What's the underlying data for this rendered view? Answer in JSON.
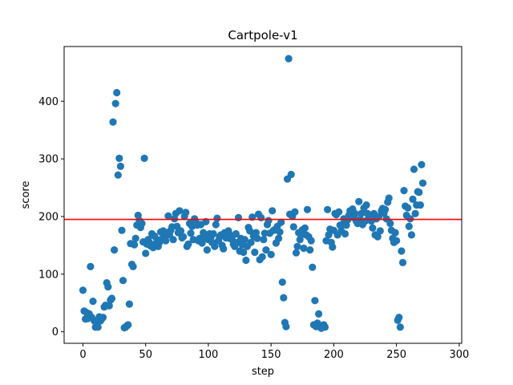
{
  "chart_data": {
    "type": "scatter",
    "title": "Cartpole-v1",
    "xlabel": "step",
    "ylabel": "score",
    "xlim": [
      -15,
      302
    ],
    "ylim": [
      -20,
      495
    ],
    "x_ticks": [
      0,
      50,
      100,
      150,
      200,
      250,
      300
    ],
    "y_ticks": [
      0,
      100,
      200,
      300,
      400
    ],
    "grid": false,
    "legend": "none",
    "point_color": "#1f77b4",
    "threshold": {
      "y": 195,
      "color": "#ff0000"
    },
    "series": [
      {
        "points": [
          [
            0,
            72
          ],
          [
            1,
            36
          ],
          [
            2,
            22
          ],
          [
            3,
            33
          ],
          [
            4,
            23
          ],
          [
            5,
            31
          ],
          [
            6,
            113
          ],
          [
            7,
            25
          ],
          [
            8,
            53
          ],
          [
            9,
            19
          ],
          [
            10,
            8
          ],
          [
            11,
            18
          ],
          [
            12,
            8
          ],
          [
            13,
            26
          ],
          [
            14,
            19
          ],
          [
            15,
            22
          ],
          [
            16,
            25
          ],
          [
            17,
            43
          ],
          [
            18,
            46
          ],
          [
            19,
            85
          ],
          [
            20,
            78
          ],
          [
            21,
            45
          ],
          [
            22,
            55
          ],
          [
            23,
            58
          ],
          [
            24,
            364
          ],
          [
            25,
            142
          ],
          [
            26,
            396
          ],
          [
            27,
            415
          ],
          [
            28,
            272
          ],
          [
            29,
            301
          ],
          [
            30,
            287
          ],
          [
            31,
            176
          ],
          [
            32,
            89
          ],
          [
            33,
            7
          ],
          [
            34,
            8
          ],
          [
            35,
            10
          ],
          [
            36,
            12
          ],
          [
            37,
            48
          ],
          [
            38,
            153
          ],
          [
            39,
            117
          ],
          [
            40,
            113
          ],
          [
            41,
            151
          ],
          [
            42,
            162
          ],
          [
            43,
            185
          ],
          [
            44,
            202
          ],
          [
            45,
            193
          ],
          [
            46,
            181
          ],
          [
            47,
            188
          ],
          [
            48,
            156
          ],
          [
            49,
            301
          ],
          [
            50,
            136
          ],
          [
            51,
            152
          ],
          [
            52,
            160
          ],
          [
            53,
            155
          ],
          [
            54,
            149
          ],
          [
            55,
            170
          ],
          [
            56,
            146
          ],
          [
            57,
            166
          ],
          [
            58,
            152
          ],
          [
            59,
            160
          ],
          [
            60,
            148
          ],
          [
            61,
            155
          ],
          [
            62,
            173
          ],
          [
            63,
            161
          ],
          [
            64,
            175
          ],
          [
            65,
            166
          ],
          [
            66,
            158
          ],
          [
            67,
            172
          ],
          [
            68,
            201
          ],
          [
            69,
            168
          ],
          [
            70,
            176
          ],
          [
            71,
            182
          ],
          [
            72,
            160
          ],
          [
            73,
            196
          ],
          [
            74,
            205
          ],
          [
            75,
            183
          ],
          [
            76,
            172
          ],
          [
            77,
            210
          ],
          [
            78,
            175
          ],
          [
            79,
            163
          ],
          [
            80,
            165
          ],
          [
            81,
            200
          ],
          [
            82,
            207
          ],
          [
            83,
            148
          ],
          [
            84,
            152
          ],
          [
            85,
            188
          ],
          [
            86,
            171
          ],
          [
            87,
            183
          ],
          [
            88,
            160
          ],
          [
            89,
            196
          ],
          [
            90,
            190
          ],
          [
            91,
            185
          ],
          [
            92,
            158
          ],
          [
            93,
            162
          ],
          [
            94,
            186
          ],
          [
            95,
            154
          ],
          [
            96,
            172
          ],
          [
            97,
            165
          ],
          [
            98,
            191
          ],
          [
            99,
            142
          ],
          [
            100,
            160
          ],
          [
            101,
            170
          ],
          [
            102,
            164
          ],
          [
            103,
            155
          ],
          [
            104,
            170
          ],
          [
            105,
            148
          ],
          [
            106,
            186
          ],
          [
            107,
            197
          ],
          [
            108,
            158
          ],
          [
            109,
            165
          ],
          [
            110,
            168
          ],
          [
            111,
            150
          ],
          [
            112,
            144
          ],
          [
            113,
            172
          ],
          [
            114,
            163
          ],
          [
            115,
            165
          ],
          [
            116,
            175
          ],
          [
            117,
            162
          ],
          [
            118,
            167
          ],
          [
            119,
            160
          ],
          [
            120,
            152
          ],
          [
            121,
            148
          ],
          [
            122,
            170
          ],
          [
            123,
            155
          ],
          [
            124,
            198
          ],
          [
            125,
            140
          ],
          [
            126,
            162
          ],
          [
            127,
            151
          ],
          [
            128,
            138
          ],
          [
            129,
            160
          ],
          [
            130,
            124
          ],
          [
            131,
            148
          ],
          [
            132,
            181
          ],
          [
            133,
            175
          ],
          [
            134,
            155
          ],
          [
            135,
            199
          ],
          [
            136,
            166
          ],
          [
            137,
            138
          ],
          [
            138,
            172
          ],
          [
            139,
            162
          ],
          [
            140,
            204
          ],
          [
            141,
            125
          ],
          [
            142,
            198
          ],
          [
            143,
            130
          ],
          [
            144,
            160
          ],
          [
            145,
            171
          ],
          [
            146,
            142
          ],
          [
            147,
            186
          ],
          [
            148,
            193
          ],
          [
            149,
            171
          ],
          [
            150,
            134
          ],
          [
            151,
            210
          ],
          [
            152,
            176
          ],
          [
            153,
            177
          ],
          [
            154,
            154
          ],
          [
            155,
            183
          ],
          [
            156,
            162
          ],
          [
            157,
            173
          ],
          [
            158,
            190
          ],
          [
            159,
            86
          ],
          [
            160,
            59
          ],
          [
            161,
            16
          ],
          [
            162,
            9
          ],
          [
            163,
            265
          ],
          [
            164,
            474
          ],
          [
            165,
            204
          ],
          [
            166,
            273
          ],
          [
            167,
            200
          ],
          [
            168,
            182
          ],
          [
            169,
            208
          ],
          [
            170,
            137
          ],
          [
            171,
            148
          ],
          [
            172,
            172
          ],
          [
            173,
            160
          ],
          [
            174,
            168
          ],
          [
            175,
            177
          ],
          [
            176,
            145
          ],
          [
            177,
            180
          ],
          [
            178,
            168
          ],
          [
            179,
            212
          ],
          [
            180,
            165
          ],
          [
            181,
            142
          ],
          [
            182,
            158
          ],
          [
            183,
            112
          ],
          [
            184,
            12
          ],
          [
            185,
            54
          ],
          [
            186,
            9
          ],
          [
            187,
            15
          ],
          [
            188,
            31
          ],
          [
            189,
            9
          ],
          [
            190,
            6
          ],
          [
            191,
            8
          ],
          [
            192,
            12
          ],
          [
            193,
            8
          ],
          [
            194,
            158
          ],
          [
            195,
            212
          ],
          [
            196,
            168
          ],
          [
            197,
            178
          ],
          [
            198,
            155
          ],
          [
            199,
            147
          ],
          [
            200,
            176
          ],
          [
            201,
            205
          ],
          [
            202,
            203
          ],
          [
            203,
            168
          ],
          [
            204,
            208
          ],
          [
            205,
            185
          ],
          [
            206,
            175
          ],
          [
            207,
            186
          ],
          [
            208,
            196
          ],
          [
            209,
            170
          ],
          [
            210,
            185
          ],
          [
            211,
            194
          ],
          [
            212,
            202
          ],
          [
            213,
            210
          ],
          [
            214,
            200
          ],
          [
            215,
            213
          ],
          [
            216,
            198
          ],
          [
            217,
            205
          ],
          [
            218,
            192
          ],
          [
            219,
            188
          ],
          [
            220,
            226
          ],
          [
            221,
            195
          ],
          [
            222,
            205
          ],
          [
            223,
            186
          ],
          [
            224,
            215
          ],
          [
            225,
            192
          ],
          [
            226,
            220
          ],
          [
            227,
            205
          ],
          [
            228,
            200
          ],
          [
            229,
            197
          ],
          [
            230,
            192
          ],
          [
            231,
            180
          ],
          [
            232,
            205
          ],
          [
            233,
            168
          ],
          [
            234,
            196
          ],
          [
            235,
            165
          ],
          [
            236,
            200
          ],
          [
            237,
            175
          ],
          [
            238,
            210
          ],
          [
            239,
            214
          ],
          [
            240,
            206
          ],
          [
            241,
            212
          ],
          [
            242,
            196
          ],
          [
            243,
            225
          ],
          [
            244,
            232
          ],
          [
            245,
            188
          ],
          [
            246,
            176
          ],
          [
            247,
            162
          ],
          [
            248,
            155
          ],
          [
            249,
            172
          ],
          [
            250,
            158
          ],
          [
            251,
            20
          ],
          [
            252,
            25
          ],
          [
            253,
            8
          ],
          [
            254,
            140
          ],
          [
            255,
            120
          ],
          [
            256,
            245
          ],
          [
            257,
            218
          ],
          [
            258,
            202
          ],
          [
            259,
            215
          ],
          [
            260,
            183
          ],
          [
            261,
            196
          ],
          [
            262,
            168
          ],
          [
            263,
            230
          ],
          [
            264,
            282
          ],
          [
            265,
            205
          ],
          [
            266,
            220
          ],
          [
            267,
            243
          ],
          [
            268,
            242
          ],
          [
            269,
            220
          ],
          [
            270,
            290
          ],
          [
            271,
            258
          ]
        ]
      }
    ]
  }
}
